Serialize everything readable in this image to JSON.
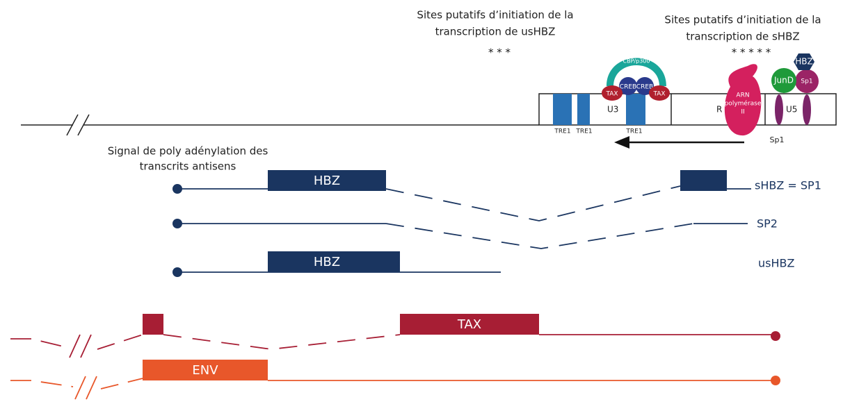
{
  "header_left": {
    "lines": [
      "Sites putatifs d’initiation de la",
      "transcription de usHBZ"
    ],
    "stars": "* * *"
  },
  "header_right": {
    "lines": [
      "Sites putatifs d’initiation de la",
      "transcription de sHBZ"
    ],
    "stars": "* * * * *"
  },
  "ltr": {
    "regions": [
      "U3",
      "R",
      "U5"
    ],
    "tre": [
      "TRE1",
      "TRE1",
      "TRE1"
    ]
  },
  "proteins": {
    "cbp": "CBP/p300",
    "creb": [
      "CREB",
      "CREB"
    ],
    "tax": [
      "TAX",
      "TAX"
    ],
    "hbz": "HBZ",
    "jund": "JunD",
    "sp1_top": "Sp1",
    "sp1_bottom": "Sp1",
    "polymerase": [
      "ARN",
      "polymérase",
      "II"
    ]
  },
  "polyA": {
    "lines": [
      "Signal de poly adénylation des",
      "transcrits antisens"
    ]
  },
  "transcripts": [
    {
      "exon": "HBZ",
      "label": "sHBZ = SP1"
    },
    {
      "label": "SP2"
    },
    {
      "exon": "HBZ",
      "label": "usHBZ"
    },
    {
      "exon": "TAX"
    },
    {
      "exon": "ENV"
    }
  ]
}
